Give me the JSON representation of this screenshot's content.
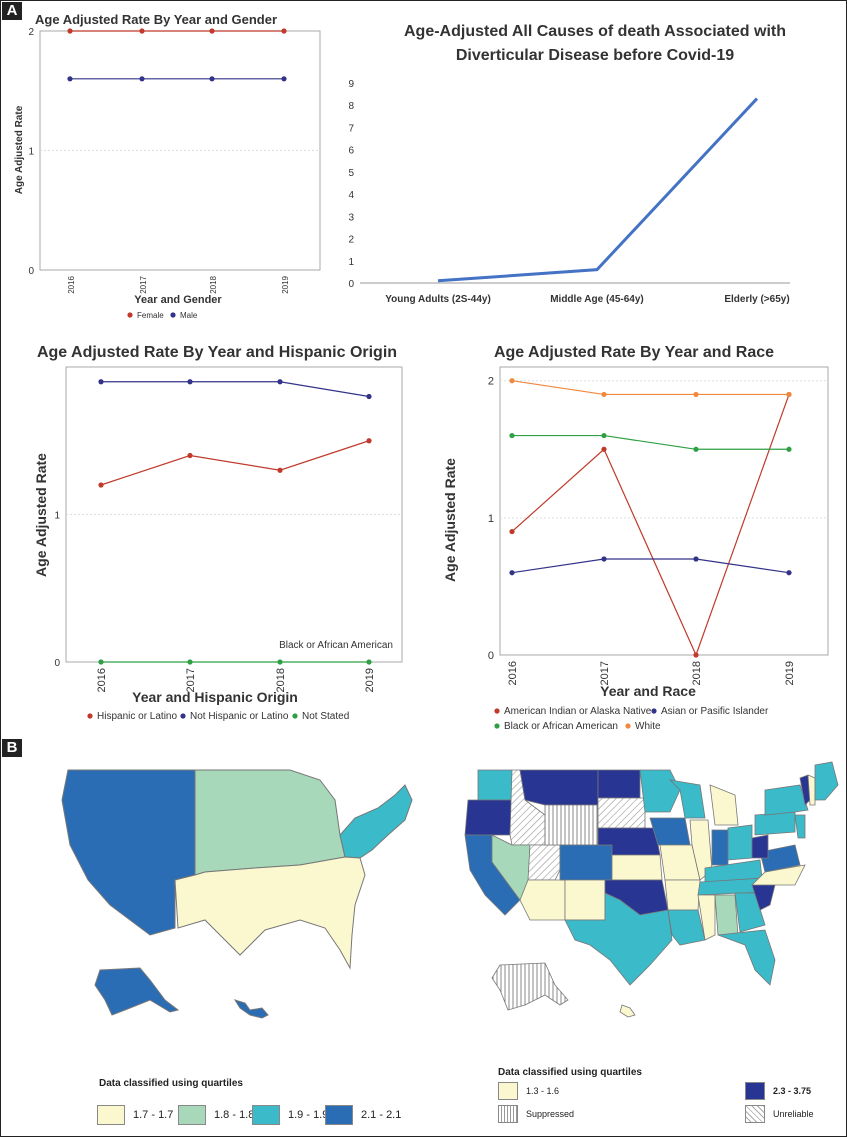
{
  "panels": {
    "a": "A",
    "b": "B"
  },
  "chart_data": [
    {
      "type": "line",
      "title": "Age Adjusted Rate By Year and Gender",
      "xlabel": "Year and Gender",
      "ylabel": "Age Adjusted Rate",
      "categories": [
        "2016",
        "2017",
        "2018",
        "2019"
      ],
      "ylim": [
        0,
        2
      ],
      "yticks": [
        "0",
        "1",
        "2"
      ],
      "legend": "bottom",
      "series": [
        {
          "name": "Female",
          "color": "#c0392b",
          "values": [
            2.0,
            2.0,
            2.0,
            2.0
          ]
        },
        {
          "name": "Male",
          "color": "#33338a",
          "values": [
            1.6,
            1.6,
            1.6,
            1.6
          ]
        }
      ]
    },
    {
      "type": "line",
      "title": "Age-Adjusted All Causes of death Associated with Diverticular Disease before Covid-19",
      "categories": [
        "Young Adults (2S-44y)",
        "Middle Age (45-64y)",
        "Elderly (>65y)"
      ],
      "ylim": [
        0,
        9
      ],
      "yticks": [
        "0",
        "1",
        "2",
        "3",
        "4",
        "5",
        "6",
        "7",
        "8",
        "9"
      ],
      "series": [
        {
          "color": "#4472c4",
          "values": [
            0.1,
            0.6,
            8.3
          ]
        }
      ]
    },
    {
      "type": "line",
      "title": "Age Adjusted Rate By Year and Hispanic Origin",
      "xlabel": "Year and Hispanic Origin",
      "ylabel": "Age Adjusted Rate",
      "categories": [
        "2016",
        "2017",
        "2018",
        "2019"
      ],
      "ylim": [
        0,
        2
      ],
      "yticks": [
        "0",
        "1"
      ],
      "annotation": "Black or African American",
      "legend": "bottom",
      "series": [
        {
          "name": "Hispanic or Latino",
          "color": "#c0392b",
          "values": [
            1.2,
            1.4,
            1.3,
            1.5
          ]
        },
        {
          "name": "Not Hispanic or Latino",
          "color": "#33338a",
          "values": [
            1.9,
            1.9,
            1.9,
            1.8
          ]
        },
        {
          "name": "Not Stated",
          "color": "#2ea043",
          "values": [
            0,
            0,
            0,
            0
          ]
        }
      ]
    },
    {
      "type": "line",
      "title": "Age Adjusted Rate By Year and Race",
      "xlabel": "Year and Race",
      "ylabel": "Age Adjusted Rate",
      "categories": [
        "2016",
        "2017",
        "2018",
        "2019"
      ],
      "ylim": [
        0,
        2.1
      ],
      "yticks": [
        "0",
        "1",
        "2"
      ],
      "legend": "bottom",
      "series": [
        {
          "name": "American Indian or Alaska Native",
          "color": "#c0392b",
          "values": [
            0.9,
            1.5,
            0.0,
            1.9
          ]
        },
        {
          "name": "Asian or Pasific Islander",
          "color": "#33338a",
          "values": [
            0.6,
            0.7,
            0.7,
            0.6
          ]
        },
        {
          "name": "Black or African American",
          "color": "#2ea043",
          "values": [
            1.6,
            1.6,
            1.5,
            1.5
          ]
        },
        {
          "name": "White",
          "color": "#f0883e",
          "values": [
            2.0,
            1.9,
            1.9,
            1.9
          ]
        }
      ]
    }
  ],
  "maps": {
    "left": {
      "legend_title": "Data classified using quartiles",
      "classes": [
        {
          "label": "1.7 - 1.7",
          "color": "#fbf8cf"
        },
        {
          "label": "1.8 - 1.8",
          "color": "#a6d8b9"
        },
        {
          "label": "1.9 - 1.9",
          "color": "#3bbac9"
        },
        {
          "label": "2.1 - 2.1",
          "color": "#2a6db5"
        }
      ]
    },
    "right": {
      "legend_title": "Data classified using quartiles",
      "classes": [
        {
          "label": "1.3 - 1.6",
          "color": "#fbf8cf"
        },
        {
          "label": "2.3 - 3.75",
          "color": "#283593"
        },
        {
          "label": "Suppressed",
          "color": "pattern-vertical"
        },
        {
          "label": "Unreliable",
          "color": "pattern-diagonal"
        }
      ]
    }
  }
}
